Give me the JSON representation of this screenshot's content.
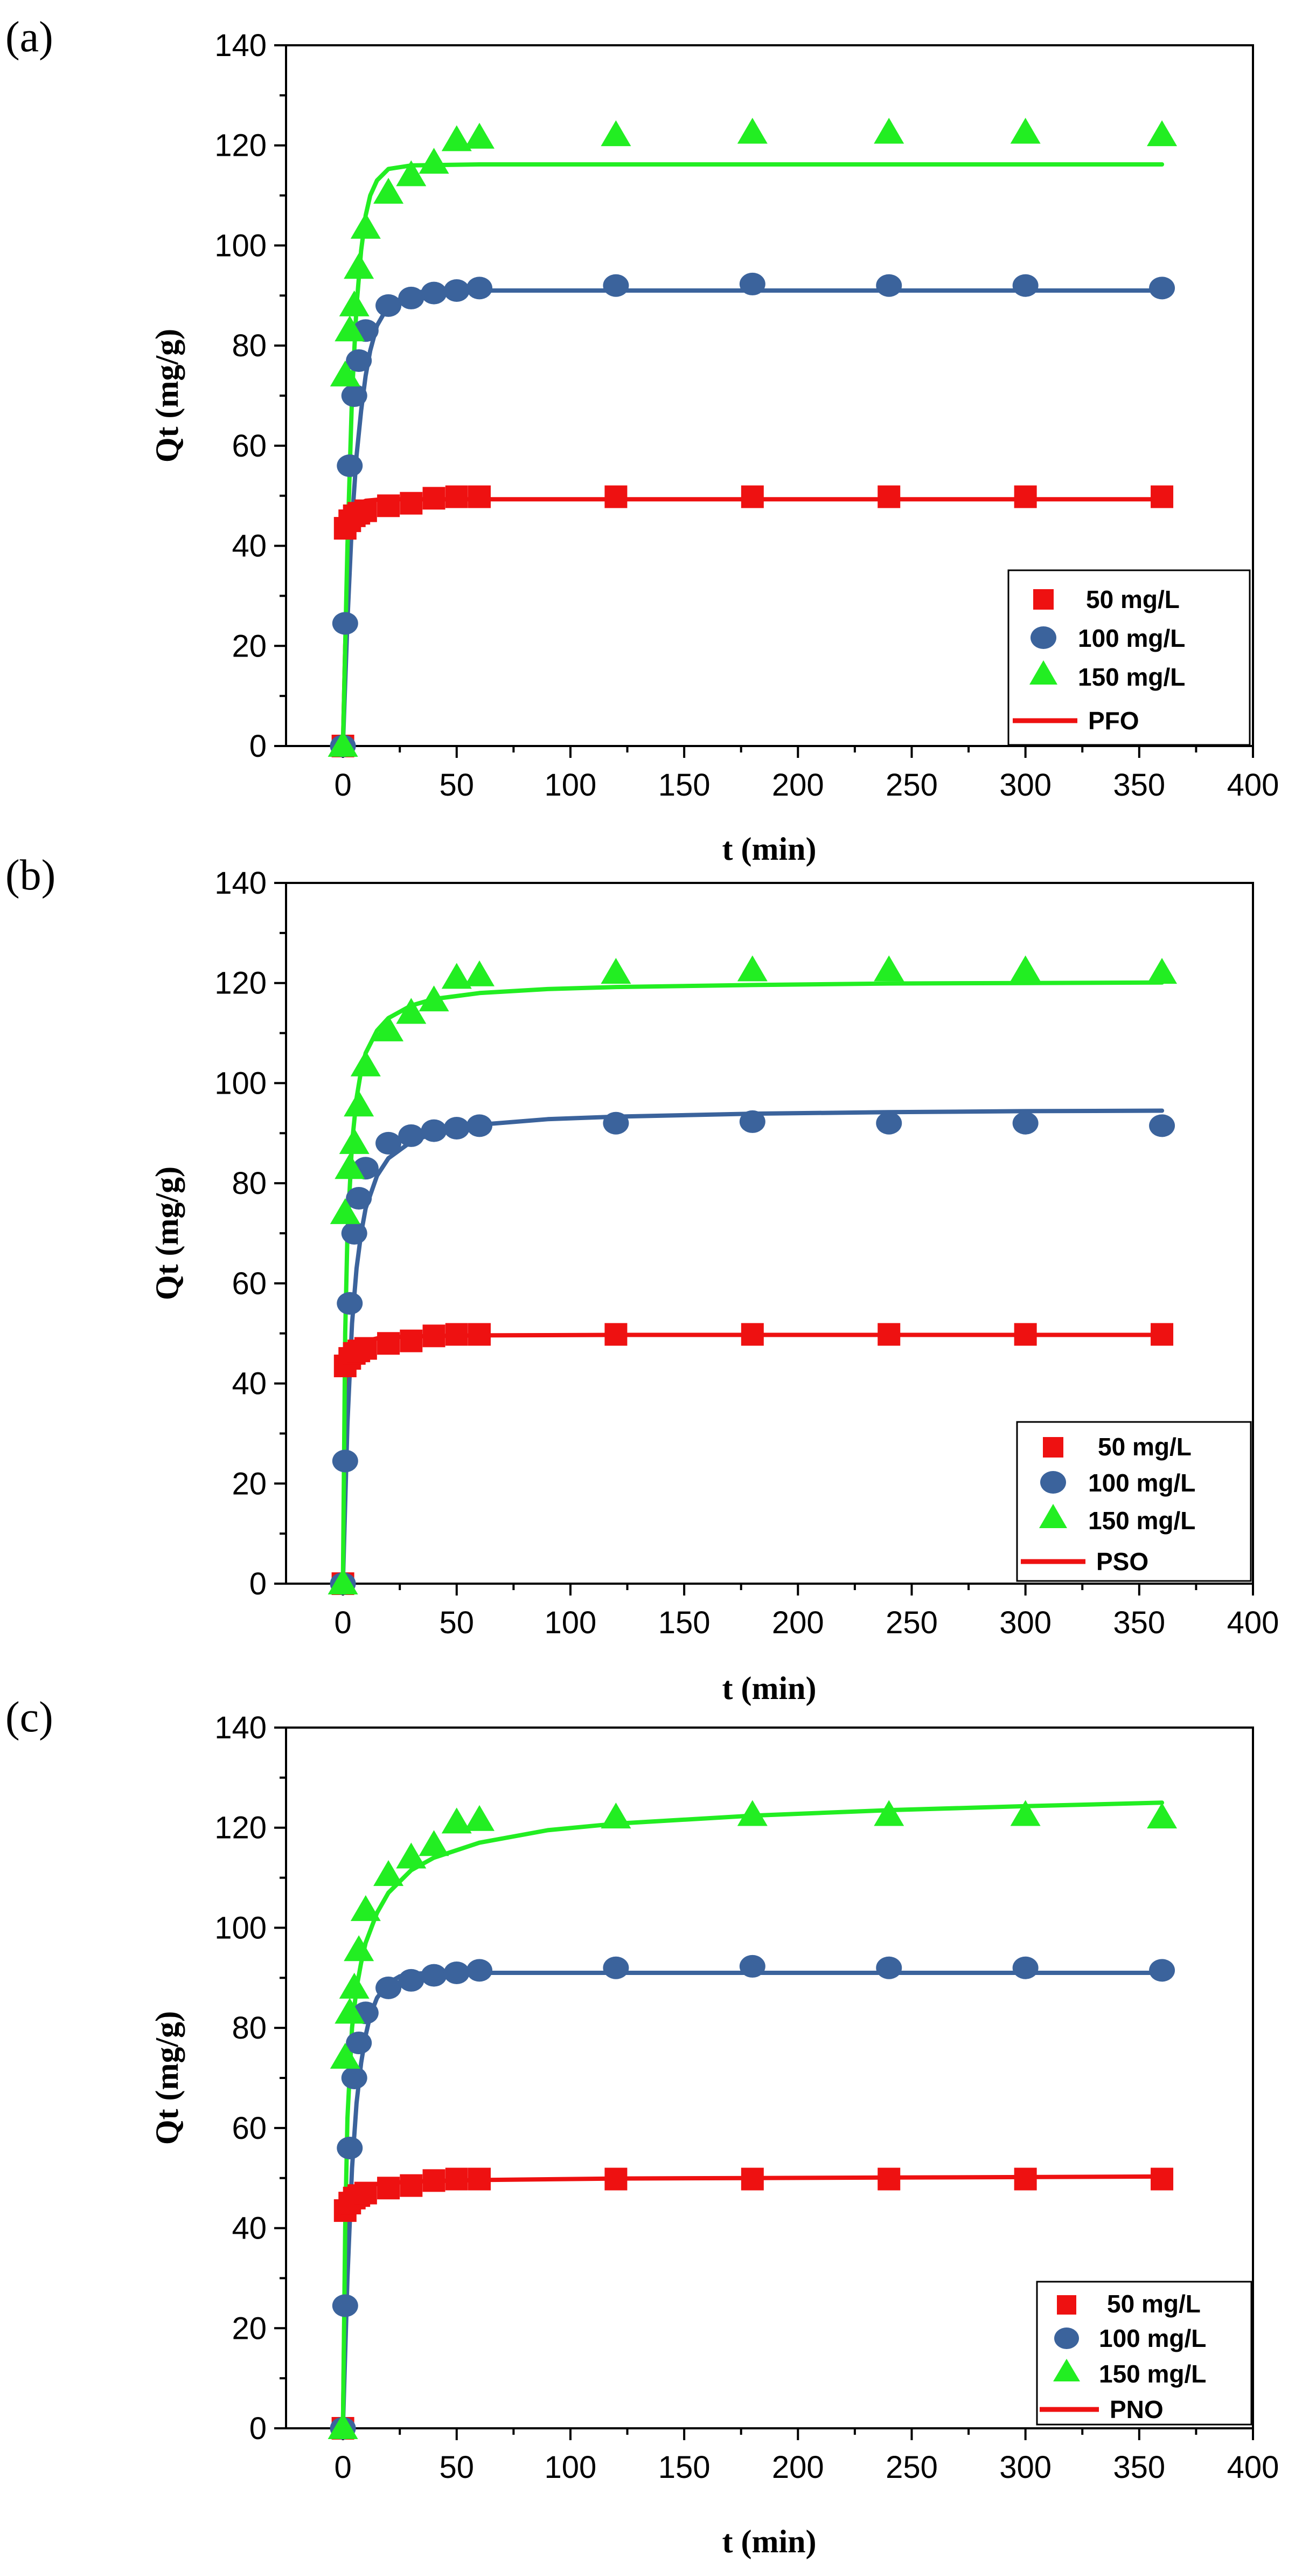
{
  "chart_data": [
    {
      "type": "scatter",
      "panel_label": "(a)",
      "xlabel": "t (min)",
      "ylabel": "Qt (mg/g)",
      "xlim": [
        -25,
        400
      ],
      "ylim": [
        0,
        140
      ],
      "xticks": [
        0,
        50,
        100,
        150,
        200,
        250,
        300,
        350,
        400
      ],
      "yticks": [
        0,
        20,
        40,
        60,
        80,
        100,
        120,
        140
      ],
      "x": [
        0,
        1,
        3,
        5,
        7,
        10,
        20,
        30,
        40,
        50,
        60,
        120,
        180,
        240,
        300,
        360
      ],
      "series": [
        {
          "name": "50 mg/L",
          "marker": "square",
          "color": "#ee1111",
          "values": [
            0,
            43.5,
            45,
            46,
            46.5,
            47,
            48,
            48.5,
            49.5,
            49.8,
            49.8,
            49.8,
            49.8,
            49.8,
            49.8,
            49.8
          ]
        },
        {
          "name": "100 mg/L",
          "marker": "circle",
          "color": "#3b639c",
          "values": [
            0,
            24.5,
            56,
            70,
            77,
            83,
            88,
            89.5,
            90.5,
            91,
            91.5,
            92,
            92.3,
            92,
            92,
            91.5
          ]
        },
        {
          "name": "150 mg/L",
          "marker": "triangle",
          "color": "#22ee22",
          "values": [
            0,
            74,
            83,
            88,
            95.5,
            103.5,
            110.5,
            114,
            116.5,
            121,
            121.5,
            122,
            122.5,
            122.5,
            122.5,
            122
          ]
        }
      ],
      "fit": {
        "name": "PFO",
        "color": "#ee1111",
        "curves": [
          {
            "series": "50 mg/L",
            "x": [
              0,
              1,
              2,
              4,
              6,
              8,
              10,
              15,
              20,
              30,
              60,
              120,
              240,
              360
            ],
            "y": [
              0,
              20,
              32,
              44,
              47.5,
              48.6,
              49,
              49.2,
              49.3,
              49.3,
              49.3,
              49.3,
              49.3,
              49.3
            ]
          },
          {
            "series": "100 mg/L",
            "x": [
              0,
              2,
              4,
              6,
              8,
              10,
              12,
              15,
              20,
              30,
              40,
              60,
              120,
              240,
              360
            ],
            "y": [
              0,
              25,
              45,
              58,
              67,
              74,
              79,
              84,
              88,
              90.5,
              91,
              91,
              91,
              91,
              91
            ]
          },
          {
            "series": "150 mg/L",
            "x": [
              0,
              2,
              4,
              6,
              8,
              10,
              12,
              15,
              20,
              30,
              60,
              120,
              240,
              360
            ],
            "y": [
              0,
              40,
              70,
              88,
              99,
              106,
              110,
              113,
              115.3,
              116,
              116.2,
              116.2,
              116.2,
              116.2
            ]
          }
        ]
      },
      "legend": [
        "50 mg/L",
        "100 mg/L",
        "150 mg/L",
        "PFO"
      ]
    },
    {
      "type": "scatter",
      "panel_label": "(b)",
      "xlabel": "t (min)",
      "ylabel": "Qt (mg/g)",
      "xlim": [
        -25,
        400
      ],
      "ylim": [
        0,
        140
      ],
      "xticks": [
        0,
        50,
        100,
        150,
        200,
        250,
        300,
        350,
        400
      ],
      "yticks": [
        0,
        20,
        40,
        60,
        80,
        100,
        120,
        140
      ],
      "x": [
        0,
        1,
        3,
        5,
        7,
        10,
        20,
        30,
        40,
        50,
        60,
        120,
        180,
        240,
        300,
        360
      ],
      "series": [
        {
          "name": "50 mg/L",
          "marker": "square",
          "color": "#ee1111",
          "values": [
            0,
            43.5,
            45,
            46,
            46.5,
            47,
            48,
            48.5,
            49.5,
            49.8,
            49.8,
            49.8,
            49.8,
            49.8,
            49.8,
            49.8
          ]
        },
        {
          "name": "100 mg/L",
          "marker": "circle",
          "color": "#3b639c",
          "values": [
            0,
            24.5,
            56,
            70,
            77,
            83,
            88,
            89.5,
            90.5,
            91,
            91.5,
            92,
            92.3,
            92,
            92,
            91.5
          ]
        },
        {
          "name": "150 mg/L",
          "marker": "triangle",
          "color": "#22ee22",
          "values": [
            0,
            74,
            83,
            88,
            95.5,
            103.5,
            110.5,
            114,
            116.5,
            121,
            121.5,
            122,
            122.5,
            122.5,
            122.5,
            122
          ]
        }
      ],
      "fit": {
        "name": "PSO",
        "color": "#ee1111",
        "curves": [
          {
            "series": "50 mg/L",
            "x": [
              0,
              1,
              2,
              4,
              6,
              8,
              10,
              15,
              20,
              30,
              60,
              120,
              240,
              360
            ],
            "y": [
              0,
              30,
              40,
              45.5,
              47.3,
              48,
              48.5,
              49,
              49.2,
              49.4,
              49.6,
              49.7,
              49.7,
              49.7
            ]
          },
          {
            "series": "100 mg/L",
            "x": [
              0,
              2,
              4,
              6,
              8,
              10,
              15,
              20,
              30,
              40,
              60,
              90,
              120,
              180,
              240,
              300,
              360
            ],
            "y": [
              0,
              32,
              52,
              63,
              70,
              75,
              81.5,
              85,
              88.3,
              90,
              91.7,
              92.8,
              93.3,
              93.9,
              94.2,
              94.4,
              94.5
            ]
          },
          {
            "series": "150 mg/L",
            "x": [
              0,
              1,
              2,
              4,
              6,
              8,
              10,
              15,
              20,
              30,
              40,
              60,
              90,
              120,
              180,
              240,
              300,
              360
            ],
            "y": [
              0,
              50,
              70,
              88,
              97,
              102.5,
              106,
              110.5,
              113,
              115.5,
              116.8,
              118,
              118.8,
              119.2,
              119.6,
              119.9,
              120,
              120.1
            ]
          }
        ]
      },
      "legend": [
        "50 mg/L",
        "100 mg/L",
        "150 mg/L",
        "PSO"
      ]
    },
    {
      "type": "scatter",
      "panel_label": "(c)",
      "xlabel": "t (min)",
      "ylabel": "Qt (mg/g)",
      "xlim": [
        -25,
        400
      ],
      "ylim": [
        0,
        140
      ],
      "xticks": [
        0,
        50,
        100,
        150,
        200,
        250,
        300,
        350,
        400
      ],
      "yticks": [
        0,
        20,
        40,
        60,
        80,
        100,
        120,
        140
      ],
      "x": [
        0,
        1,
        3,
        5,
        7,
        10,
        20,
        30,
        40,
        50,
        60,
        120,
        180,
        240,
        300,
        360
      ],
      "series": [
        {
          "name": "50 mg/L",
          "marker": "square",
          "color": "#ee1111",
          "values": [
            0,
            43.5,
            45,
            46,
            46.5,
            47,
            48,
            48.5,
            49.5,
            49.8,
            49.8,
            49.8,
            49.8,
            49.8,
            49.8,
            49.8
          ]
        },
        {
          "name": "100 mg/L",
          "marker": "circle",
          "color": "#3b639c",
          "values": [
            0,
            24.5,
            56,
            70,
            77,
            83,
            88,
            89.5,
            90.5,
            91,
            91.5,
            92,
            92.3,
            92,
            92,
            91.5
          ]
        },
        {
          "name": "150 mg/L",
          "marker": "triangle",
          "color": "#22ee22",
          "values": [
            0,
            74,
            83,
            88,
            95.5,
            103.5,
            110.5,
            114,
            116.5,
            121,
            121.5,
            122,
            122.5,
            122.5,
            122.5,
            122
          ]
        }
      ],
      "fit": {
        "name": "PNO",
        "color": "#ee1111",
        "curves": [
          {
            "series": "50 mg/L",
            "x": [
              0,
              1,
              2,
              4,
              6,
              8,
              10,
              15,
              20,
              30,
              60,
              120,
              180,
              240,
              300,
              360
            ],
            "y": [
              0,
              36,
              42,
              45.5,
              47,
              47.8,
              48.3,
              48.8,
              49,
              49.3,
              49.6,
              49.9,
              50,
              50.1,
              50.2,
              50.3
            ]
          },
          {
            "series": "100 mg/L",
            "x": [
              0,
              2,
              4,
              6,
              8,
              10,
              12,
              15,
              20,
              25,
              30,
              40,
              60,
              120,
              240,
              360
            ],
            "y": [
              0,
              30,
              52,
              65,
              73,
              78.5,
              82.5,
              86,
              89,
              90.3,
              90.8,
              91,
              91,
              91,
              91,
              91
            ]
          },
          {
            "series": "150 mg/L",
            "x": [
              0,
              1,
              2,
              4,
              6,
              8,
              10,
              15,
              20,
              30,
              40,
              60,
              90,
              120,
              180,
              240,
              300,
              360
            ],
            "y": [
              0,
              40,
              62,
              80,
              88,
              93,
              97,
              103,
              107,
              111.5,
              114,
              117,
              119.5,
              120.8,
              122.4,
              123.5,
              124.3,
              125
            ]
          }
        ]
      },
      "legend": [
        "50 mg/L",
        "100 mg/L",
        "150 mg/L",
        "PNO"
      ]
    }
  ]
}
